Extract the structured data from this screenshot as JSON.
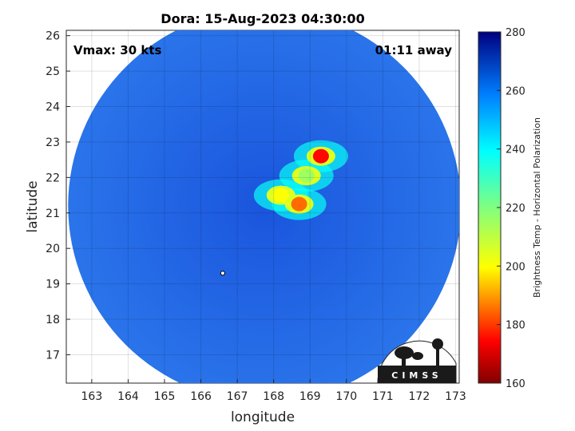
{
  "chart_data": {
    "type": "heatmap",
    "title": "Dora: 15-Aug-2023 04:30:00",
    "xlabel": "longitude",
    "ylabel": "latitude",
    "xlim": [
      162.3,
      173.1
    ],
    "ylim": [
      16.2,
      26.15
    ],
    "xticks": [
      163,
      164,
      165,
      166,
      167,
      168,
      169,
      170,
      171,
      172,
      173
    ],
    "yticks": [
      17,
      18,
      19,
      20,
      21,
      22,
      23,
      24,
      25,
      26
    ],
    "grid": true,
    "swath_center": [
      167.75,
      21.2
    ],
    "colorbar": {
      "label": "Brightness Temp - Horizontal Polarization",
      "min": 160,
      "max": 280,
      "ticks": [
        160,
        180,
        200,
        220,
        240,
        260,
        280
      ]
    },
    "features": [
      {
        "lon": 169.3,
        "lat": 22.6,
        "value": 175
      },
      {
        "lon": 168.7,
        "lat": 21.25,
        "value": 185
      },
      {
        "lon": 168.2,
        "lat": 21.5,
        "value": 200
      },
      {
        "lon": 168.9,
        "lat": 22.05,
        "value": 215
      }
    ],
    "background_value": 262,
    "center_marker": {
      "lon": 166.6,
      "lat": 19.3
    },
    "annotations": {
      "vmax": "Vmax: 30 kts",
      "time_away": "01:11 away"
    },
    "logo_text": "CIMSS"
  }
}
